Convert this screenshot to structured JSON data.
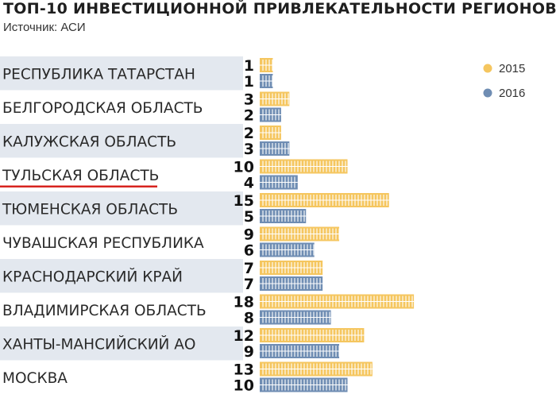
{
  "chart_data": {
    "type": "bar",
    "title": "ТОП-10 ИНВЕСТИЦИОННОЙ ПРИВЛЕКАТЕЛЬНОСТИ РЕГИОНОВ",
    "subtitle": "Источник: АСИ",
    "categories": [
      "РЕСПУБЛИКА ТАТАРСТАН",
      "БЕЛГОРОДСКАЯ ОБЛАСТЬ",
      "КАЛУЖСКАЯ ОБЛАСТЬ",
      "ТУЛЬСКАЯ ОБЛАСТЬ",
      "ТЮМЕНСКАЯ ОБЛАСТЬ",
      "ЧУВАШСКАЯ РЕСПУБЛИКА",
      "КРАСНОДАРСКИЙ КРАЙ",
      "ВЛАДИМИРСКАЯ ОБЛАСТЬ",
      "ХАНТЫ-МАНСИЙСКИЙ АО",
      "МОСКВА"
    ],
    "series": [
      {
        "name": "2015",
        "color": "#f5c65f",
        "values": [
          1,
          3,
          2,
          10,
          15,
          9,
          7,
          18,
          12,
          13
        ]
      },
      {
        "name": "2016",
        "color": "#6f8db3",
        "values": [
          1,
          2,
          3,
          4,
          5,
          6,
          7,
          8,
          9,
          10
        ]
      }
    ],
    "highlighted_category": "ТУЛЬСКАЯ ОБЛАСТЬ",
    "highlight_color": "#d7241f",
    "label_band_color": "#e3e8ef",
    "orientation": "horizontal",
    "bar_style": "segmented",
    "legend_position": "top-right",
    "grid": false
  }
}
